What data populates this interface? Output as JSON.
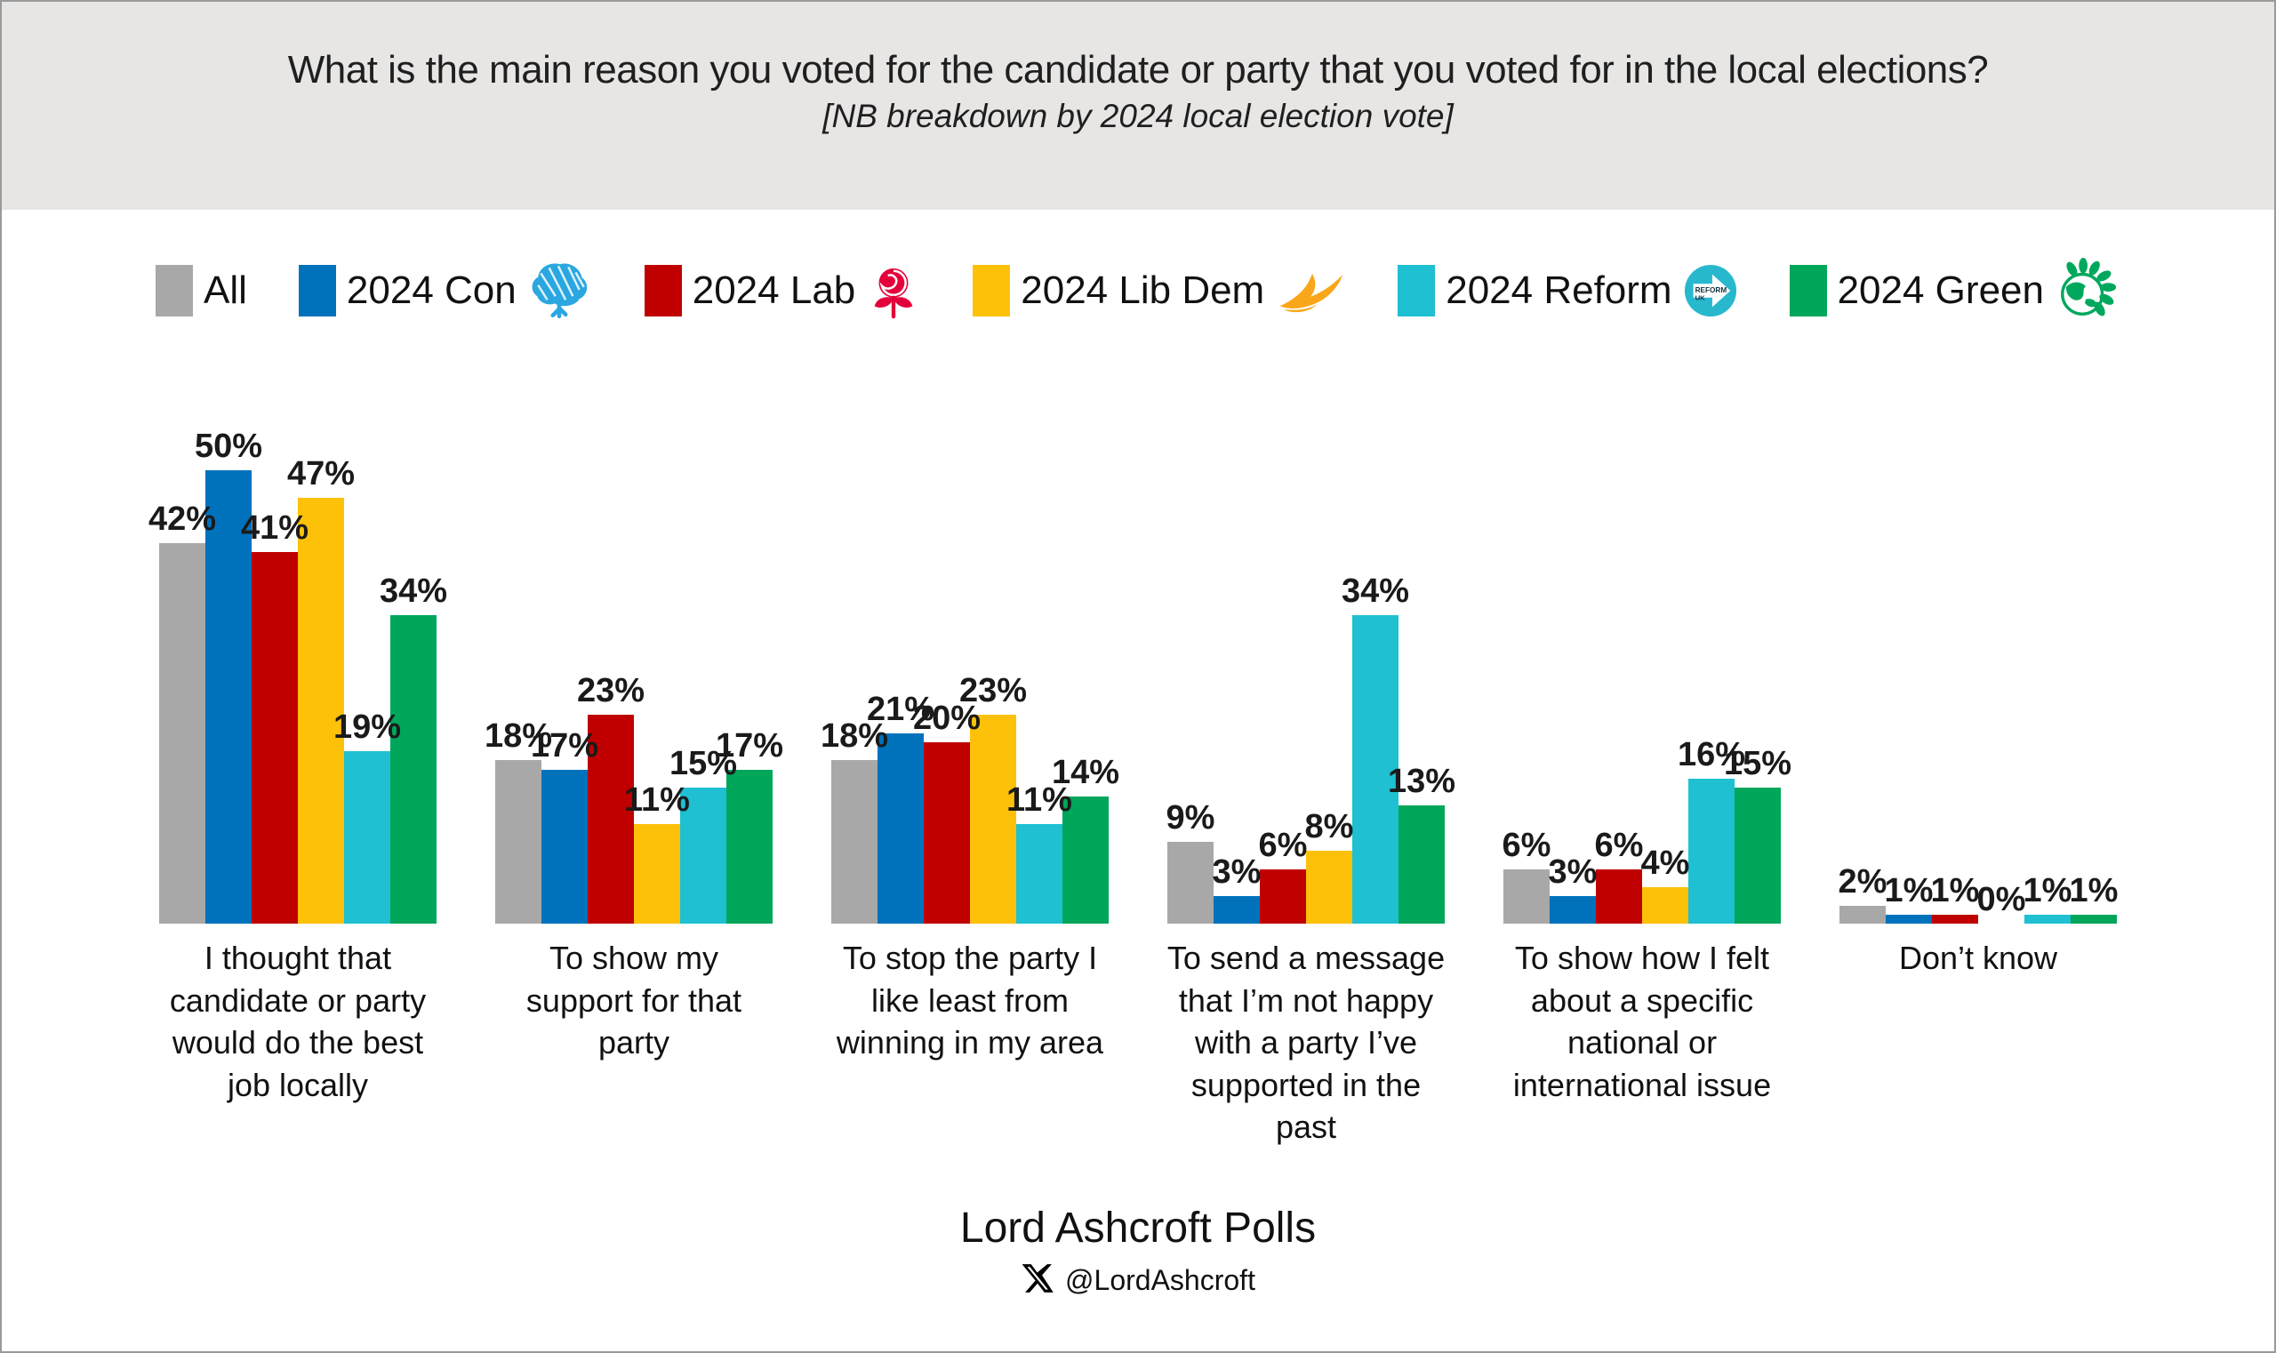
{
  "header": {
    "title": "What is the main reason you voted for the candidate or party that you voted for in the local elections?",
    "subtitle": "[NB breakdown by 2024 local election vote]"
  },
  "legend": {
    "items": [
      {
        "label": "All",
        "icon": null,
        "color": "#a8a8a8"
      },
      {
        "label": "2024 Con",
        "icon": "conservative-tree-icon",
        "color": "#0072bc"
      },
      {
        "label": "2024 Lab",
        "icon": "labour-rose-icon",
        "color": "#c00000"
      },
      {
        "label": "2024 Lib Dem",
        "icon": "libdem-bird-icon",
        "color": "#fdc10a"
      },
      {
        "label": "2024 Reform",
        "icon": "reform-uk-arrow-icon",
        "color": "#1ec0d2"
      },
      {
        "label": "2024 Green",
        "icon": "green-party-globe-icon",
        "color": "#00a65a"
      }
    ]
  },
  "chart_data": {
    "type": "bar",
    "title": "What is the main reason you voted for the candidate or party that you voted for in the local elections?",
    "subtitle": "[NB breakdown by 2024 local election vote]",
    "categories": [
      "I thought that candidate or party would do the best job locally",
      "To show my support for that party",
      "To stop the party I like least from winning in my area",
      "To send a message that I’m not happy with a party I’ve supported in the past",
      "To show how I felt about a specific national or international issue",
      "Don’t know"
    ],
    "series": [
      {
        "name": "All",
        "color": "#a8a8a8",
        "values": [
          42,
          18,
          18,
          9,
          6,
          2
        ]
      },
      {
        "name": "2024 Con",
        "color": "#0072bc",
        "values": [
          50,
          17,
          21,
          3,
          3,
          1
        ]
      },
      {
        "name": "2024 Lab",
        "color": "#c00000",
        "values": [
          41,
          23,
          20,
          6,
          6,
          1
        ]
      },
      {
        "name": "2024 Lib Dem",
        "color": "#fdc10a",
        "values": [
          47,
          11,
          23,
          8,
          4,
          0
        ]
      },
      {
        "name": "2024 Reform",
        "color": "#1ec0d2",
        "values": [
          19,
          15,
          11,
          34,
          16,
          1
        ]
      },
      {
        "name": "2024 Green",
        "color": "#00a65a",
        "values": [
          34,
          17,
          14,
          13,
          15,
          1
        ]
      }
    ],
    "value_suffix": "%",
    "ylim": [
      0,
      50
    ],
    "grid": false,
    "legend_position": "top"
  },
  "footer": {
    "source": "Lord Ashcroft Polls",
    "x_icon": "x-twitter-logo-icon",
    "handle": "@LordAshcroft"
  }
}
